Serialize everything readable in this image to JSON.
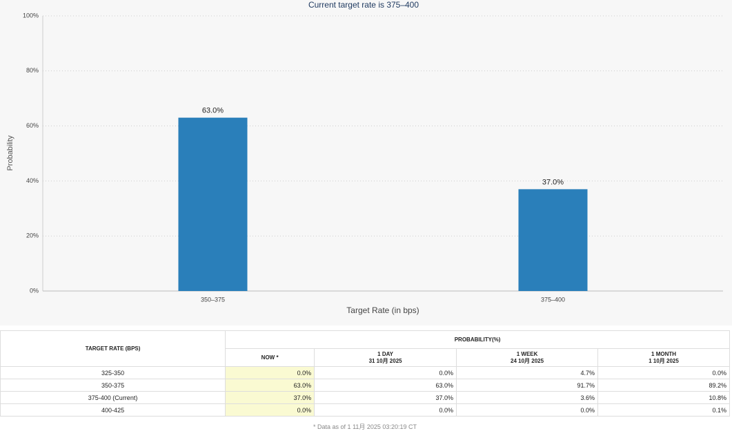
{
  "chart_data": {
    "type": "bar",
    "title": "Current target rate is 375–400",
    "x_label": "Target Rate (in bps)",
    "y_label": "Probability",
    "categories": [
      "350–375",
      "375–400"
    ],
    "values": [
      63.0,
      37.0
    ],
    "value_labels": [
      "63.0%",
      "37.0%"
    ],
    "color": "#2a7fba",
    "ylim": [
      0,
      100
    ],
    "yticks": [
      {
        "value": 0,
        "label": "0%"
      },
      {
        "value": 20,
        "label": "20%"
      },
      {
        "value": 40,
        "label": "40%"
      },
      {
        "value": 60,
        "label": "60%"
      },
      {
        "value": 80,
        "label": "80%"
      },
      {
        "value": 100,
        "label": "100%"
      }
    ],
    "grid": true
  },
  "table": {
    "row_header": "TARGET RATE (BPS)",
    "group_header": "PROBABILITY(%)",
    "columns": [
      {
        "title": "NOW *"
      },
      {
        "title": "1 DAY",
        "date": "31 10月 2025"
      },
      {
        "title": "1 WEEK",
        "date": "24 10月 2025"
      },
      {
        "title": "1 MONTH",
        "date": "1 10月 2025"
      }
    ],
    "rows": [
      [
        "325-350",
        "0.0%",
        "0.0%",
        "4.7%",
        "0.0%"
      ],
      [
        "350-375",
        "63.0%",
        "63.0%",
        "91.7%",
        "89.2%"
      ],
      [
        "375-400 (Current)",
        "37.0%",
        "37.0%",
        "3.6%",
        "10.8%"
      ],
      [
        "400-425",
        "0.0%",
        "0.0%",
        "0.0%",
        "0.1%"
      ]
    ],
    "note": "* Data as of 1 11月 2025 03:20:19 CT"
  }
}
